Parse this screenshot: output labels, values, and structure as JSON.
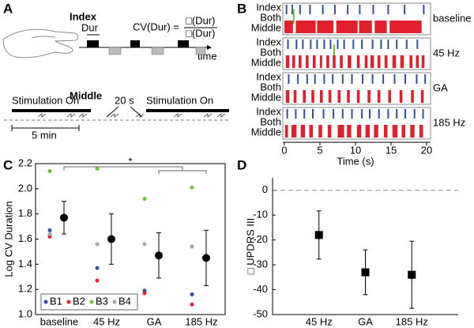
{
  "diagram": {
    "panel_label": "A",
    "index": "Index",
    "middle": "Middle",
    "dur": "Dur",
    "formula_left": "CV(Dur) =",
    "formula_num": "□(Dur)",
    "formula_den": "□(Dur)",
    "time": "time",
    "stim_1": "Stimulation On",
    "stim_2": "Stimulation On",
    "interval": "20 s",
    "period": "5 min"
  },
  "chart_data": [
    {
      "type": "raster",
      "panel_label": "B",
      "row_labels": [
        "Index",
        "Both",
        "Middle"
      ],
      "colors": {
        "index": "#2e4fa3",
        "both": "#6cc33a",
        "middle": "#e0202c"
      },
      "xlim": [
        0,
        20
      ],
      "xticks": [
        0,
        5,
        10,
        15,
        20
      ],
      "xlabel": "Time (s)",
      "conditions": [
        {
          "name": "baseline",
          "index": [
            0.3,
            1.1,
            2.2,
            3.6,
            5.4,
            7.1,
            8.9,
            10.6,
            12.5,
            14.6,
            16.9,
            19.6
          ],
          "both": [
            1.3
          ],
          "middle": [
            [
              0,
              1.2
            ],
            [
              1.6,
              4.4
            ],
            [
              4.6,
              6.9
            ],
            [
              7.3,
              10.3
            ],
            [
              10.5,
              12.3
            ],
            [
              12.7,
              14.4
            ],
            [
              14.8,
              19.3
            ]
          ]
        },
        {
          "name": "45 Hz",
          "index": [
            0.5,
            1.7,
            2.6,
            3.7,
            4.6,
            5.6,
            6.5,
            7.5,
            8.4,
            9.7,
            10.9,
            12.4,
            13.6,
            14.6,
            15.8,
            17.2,
            18.7
          ],
          "both": [
            7.0
          ],
          "middle": [
            [
              0.2,
              0.7
            ],
            [
              1.1,
              1.5
            ],
            [
              2.0,
              2.4
            ],
            [
              3.0,
              3.4
            ],
            [
              4.0,
              4.4
            ],
            [
              5.0,
              5.3
            ],
            [
              5.9,
              6.3
            ],
            [
              6.8,
              7.2
            ],
            [
              7.8,
              8.2
            ],
            [
              8.9,
              9.4
            ],
            [
              10.2,
              10.6
            ],
            [
              11.3,
              11.7
            ],
            [
              12.1,
              12.6
            ],
            [
              13.1,
              13.5
            ],
            [
              14.1,
              14.5
            ],
            [
              15.2,
              15.7
            ],
            [
              16.3,
              16.8
            ],
            [
              17.6,
              18.0
            ],
            [
              18.5,
              18.9
            ],
            [
              19.3,
              19.7
            ]
          ]
        },
        {
          "name": "GA",
          "index": [
            0.6,
            1.9,
            3.2,
            4.3,
            5.6,
            6.8,
            8.2,
            9.5,
            11.0,
            12.4,
            13.9,
            15.5,
            17.0,
            18.6,
            19.8
          ],
          "both": [],
          "middle": [
            [
              0.2,
              0.7
            ],
            [
              1.3,
              1.7
            ],
            [
              2.6,
              3.0
            ],
            [
              3.8,
              4.2
            ],
            [
              5.0,
              5.4
            ],
            [
              6.2,
              6.6
            ],
            [
              7.5,
              7.9
            ],
            [
              8.8,
              9.2
            ],
            [
              10.2,
              10.6
            ],
            [
              11.7,
              12.1
            ],
            [
              13.1,
              13.5
            ],
            [
              14.6,
              15.0
            ],
            [
              16.2,
              16.6
            ],
            [
              17.8,
              18.2
            ],
            [
              19.2,
              19.6
            ]
          ]
        },
        {
          "name": "185 Hz",
          "index": [
            0.4,
            1.6,
            2.8,
            4.0,
            5.5,
            6.9,
            8.2,
            9.5,
            10.9,
            12.0,
            13.3,
            14.6,
            15.8,
            17.0,
            18.3,
            19.5
          ],
          "both": [],
          "middle": [
            [
              0.1,
              0.5
            ],
            [
              1.0,
              1.7
            ],
            [
              2.3,
              2.9
            ],
            [
              3.5,
              4.0
            ],
            [
              4.8,
              5.3
            ],
            [
              6.1,
              6.6
            ],
            [
              7.5,
              8.4
            ],
            [
              8.8,
              9.4
            ],
            [
              10.2,
              10.8
            ],
            [
              11.4,
              12.0
            ],
            [
              12.6,
              13.2
            ],
            [
              14.0,
              14.5
            ],
            [
              15.2,
              15.9
            ],
            [
              16.5,
              17.0
            ],
            [
              17.7,
              18.3
            ],
            [
              19.0,
              19.5
            ]
          ]
        }
      ]
    },
    {
      "type": "dot_errorbar",
      "panel_label": "C",
      "ylabel": "Log CV Duration",
      "categories": [
        "baseline",
        "45 Hz",
        "GA",
        "185 Hz"
      ],
      "ylim": [
        1.0,
        2.2
      ],
      "yticks": [
        {
          "value": 1.0,
          "label": "1.0"
        },
        1.2,
        1.4,
        1.6,
        1.8,
        {
          "value": 2.0,
          "label": "2.0"
        },
        2.2
      ],
      "series": [
        {
          "name": "B1",
          "color": "#2e4fa3",
          "values": [
            1.67,
            1.37,
            1.19,
            1.16
          ]
        },
        {
          "name": "B2",
          "color": "#e0202c",
          "values": [
            1.62,
            1.27,
            1.17,
            1.08
          ]
        },
        {
          "name": "B3",
          "color": "#6cc33a",
          "values": [
            2.14,
            2.16,
            1.92,
            2.01
          ]
        },
        {
          "name": "B4",
          "color": "#a6a6a6",
          "values": [
            1.64,
            1.56,
            1.56,
            1.54
          ]
        }
      ],
      "mean": {
        "color": "#000000",
        "values": [
          1.77,
          1.6,
          1.47,
          1.45
        ],
        "errors": [
          0.13,
          0.2,
          0.18,
          0.22
        ]
      },
      "annotation": "*"
    },
    {
      "type": "errorbar",
      "panel_label": "D",
      "ylabel": "□ UPDRS III",
      "categories": [
        "45 Hz",
        "GA",
        "185 Hz"
      ],
      "values": [
        -18,
        -33,
        -34
      ],
      "errors": [
        9.7,
        9,
        13.5
      ],
      "color": "#000000",
      "ylim": [
        -50,
        5
      ],
      "yticks": [
        0,
        -10,
        -20,
        -30,
        -40,
        -50
      ],
      "reference_line": 0
    }
  ]
}
